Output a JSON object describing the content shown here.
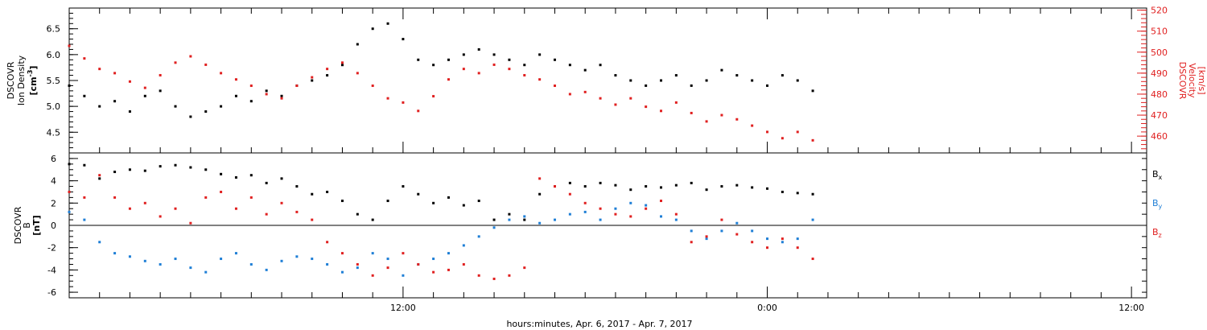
{
  "chart_data": [
    {
      "type": "scatter",
      "panel": "top",
      "ylabel_lines": [
        "DSCOVR",
        "Ion Density"
      ],
      "yunit_left": "cm",
      "yunit_left_sup": "-3",
      "ylabel_right_lines": [
        "DSCOVR",
        "Velocity"
      ],
      "yunit_right": "[km/s]",
      "y_ticks_left": [
        "4.5",
        "5.0",
        "5.5",
        "6.0",
        "6.5"
      ],
      "y_ticks_right": [
        "460",
        "470",
        "480",
        "490",
        "500",
        "510",
        "520"
      ],
      "ylim_left": [
        4.1,
        6.9
      ],
      "ylim_right": [
        452,
        521
      ],
      "series": [
        {
          "name": "",
          "color": "#000000",
          "axis": "left",
          "x": [
            0,
            0.5,
            1,
            1.5,
            2,
            2.5,
            3,
            3.5,
            4,
            4.5,
            5,
            5.5,
            6,
            6.5,
            7,
            7.5,
            8,
            8.5,
            9,
            9.5,
            10,
            10.5,
            11,
            11.5,
            12,
            12.5,
            13,
            13.5,
            14,
            14.5,
            15,
            15.5,
            16,
            16.5,
            17,
            17.5,
            18,
            18.5,
            19,
            19.5,
            20,
            20.5,
            21,
            21.5,
            22,
            22.5,
            23,
            23.5,
            24,
            24.5
          ],
          "y": [
            5.4,
            5.2,
            5.0,
            5.1,
            4.9,
            5.2,
            5.3,
            5.0,
            4.8,
            4.9,
            5.0,
            5.2,
            5.1,
            5.3,
            5.2,
            5.4,
            5.5,
            5.6,
            5.8,
            6.2,
            6.5,
            6.6,
            6.3,
            5.9,
            5.8,
            5.9,
            6.0,
            6.1,
            6.0,
            5.9,
            5.8,
            6.0,
            5.9,
            5.8,
            5.7,
            5.8,
            5.6,
            5.5,
            5.4,
            5.5,
            5.6,
            5.4,
            5.5,
            5.7,
            5.6,
            5.5,
            5.4,
            5.6,
            5.5,
            5.3
          ]
        },
        {
          "name": "",
          "color": "#e02020",
          "axis": "right",
          "x": [
            0,
            0.5,
            1,
            1.5,
            2,
            2.5,
            3,
            3.5,
            4,
            4.5,
            5,
            5.5,
            6,
            6.5,
            7,
            7.5,
            8,
            8.5,
            9,
            9.5,
            10,
            10.5,
            11,
            11.5,
            12,
            12.5,
            13,
            13.5,
            14,
            14.5,
            15,
            15.5,
            16,
            16.5,
            17,
            17.5,
            18,
            18.5,
            19,
            19.5,
            20,
            20.5,
            21,
            21.5,
            22,
            22.5,
            23,
            23.5,
            24,
            24.5
          ],
          "y": [
            503,
            497,
            492,
            490,
            486,
            483,
            489,
            495,
            498,
            494,
            490,
            487,
            484,
            480,
            478,
            484,
            488,
            492,
            495,
            490,
            484,
            478,
            476,
            472,
            479,
            487,
            492,
            490,
            494,
            492,
            489,
            487,
            484,
            480,
            481,
            478,
            475,
            478,
            474,
            472,
            476,
            471,
            467,
            470,
            468,
            465,
            462,
            459,
            462,
            458
          ]
        }
      ]
    },
    {
      "type": "scatter",
      "panel": "bottom",
      "ylabel_lines": [
        "DSCOVR",
        "B"
      ],
      "yunit_left": "[nT]",
      "y_ticks_left": [
        "-6",
        "-4",
        "-2",
        "0",
        "2",
        "4",
        "6"
      ],
      "ylim_left": [
        -6.5,
        6.5
      ],
      "x_ticks_major": [
        "12:00",
        "0:00",
        "12:00"
      ],
      "x_ticks_major_hours": [
        12,
        24,
        36
      ],
      "xlim_hours": [
        1,
        36.5
      ],
      "xlabel": "hours:minutes, Apr.  6, 2017 - Apr.  7, 2017",
      "legend": [
        {
          "label": "B",
          "sub": "x",
          "color": "#000000"
        },
        {
          "label": "B",
          "sub": "y",
          "color": "#1f7fd6"
        },
        {
          "label": "B",
          "sub": "z",
          "color": "#e02020"
        }
      ],
      "series": [
        {
          "name": "Bx",
          "color": "#000000",
          "x": [
            0,
            0.5,
            1,
            1.5,
            2,
            2.5,
            3,
            3.5,
            4,
            4.5,
            5,
            5.5,
            6,
            6.5,
            7,
            7.5,
            8,
            8.5,
            9,
            9.5,
            10,
            10.5,
            11,
            11.5,
            12,
            12.5,
            13,
            13.5,
            14,
            14.5,
            15,
            15.5,
            16,
            16.5,
            17,
            17.5,
            18,
            18.5,
            19,
            19.5,
            20,
            20.5,
            21,
            21.5,
            22,
            22.5,
            23,
            23.5,
            24,
            24.5
          ],
          "y": [
            5.5,
            5.4,
            4.2,
            4.8,
            5.0,
            4.9,
            5.3,
            5.4,
            5.2,
            5.0,
            4.6,
            4.3,
            4.5,
            3.8,
            4.2,
            3.5,
            2.8,
            3.0,
            2.2,
            1.0,
            0.5,
            2.2,
            3.5,
            2.8,
            2.0,
            2.5,
            1.8,
            2.2,
            0.5,
            1.0,
            0.5,
            2.8,
            3.5,
            3.8,
            3.5,
            3.8,
            3.6,
            3.2,
            3.5,
            3.4,
            3.6,
            3.8,
            3.2,
            3.5,
            3.6,
            3.4,
            3.3,
            3.0,
            2.9,
            2.8
          ]
        },
        {
          "name": "By",
          "color": "#1f7fd6",
          "x": [
            0,
            0.5,
            1,
            1.5,
            2,
            2.5,
            3,
            3.5,
            4,
            4.5,
            5,
            5.5,
            6,
            6.5,
            7,
            7.5,
            8,
            8.5,
            9,
            9.5,
            10,
            10.5,
            11,
            11.5,
            12,
            12.5,
            13,
            13.5,
            14,
            14.5,
            15,
            15.5,
            16,
            16.5,
            17,
            17.5,
            18,
            18.5,
            19,
            19.5,
            20,
            20.5,
            21,
            21.5,
            22,
            22.5,
            23,
            23.5,
            24,
            24.5
          ],
          "y": [
            1.2,
            0.5,
            -1.5,
            -2.5,
            -2.8,
            -3.2,
            -3.5,
            -3.0,
            -3.8,
            -4.2,
            -3.0,
            -2.5,
            -3.5,
            -4.0,
            -3.2,
            -2.8,
            -3.0,
            -3.5,
            -4.2,
            -3.8,
            -2.5,
            -3.0,
            -4.5,
            -3.5,
            -3.0,
            -2.5,
            -1.8,
            -1.0,
            -0.2,
            0.5,
            0.8,
            0.2,
            0.5,
            1.0,
            1.2,
            0.5,
            1.5,
            2.0,
            1.8,
            0.8,
            0.5,
            -0.5,
            -1.2,
            -0.5,
            0.2,
            -0.5,
            -1.2,
            -1.5,
            -1.2,
            0.5
          ]
        },
        {
          "name": "Bz",
          "color": "#e02020",
          "x": [
            0,
            0.5,
            1,
            1.5,
            2,
            2.5,
            3,
            3.5,
            4,
            4.5,
            5,
            5.5,
            6,
            6.5,
            7,
            7.5,
            8,
            8.5,
            9,
            9.5,
            10,
            10.5,
            11,
            11.5,
            12,
            12.5,
            13,
            13.5,
            14,
            14.5,
            15,
            15.5,
            16,
            16.5,
            17,
            17.5,
            18,
            18.5,
            19,
            19.5,
            20,
            20.5,
            21,
            21.5,
            22,
            22.5,
            23,
            23.5,
            24,
            24.5
          ],
          "y": [
            3.0,
            2.5,
            4.5,
            2.5,
            1.5,
            2.0,
            0.8,
            1.5,
            0.2,
            2.5,
            3.0,
            1.5,
            2.5,
            1.0,
            2.0,
            1.2,
            0.5,
            -1.5,
            -2.5,
            -3.5,
            -4.5,
            -3.8,
            -2.5,
            -3.5,
            -4.2,
            -4.0,
            -3.5,
            -4.5,
            -4.8,
            -4.5,
            -3.8,
            4.2,
            3.5,
            2.8,
            2.0,
            1.5,
            1.0,
            0.8,
            1.5,
            2.2,
            1.0,
            -1.5,
            -1.0,
            0.5,
            -0.8,
            -1.5,
            -2.0,
            -1.2,
            -2.0,
            -3.0
          ]
        }
      ]
    }
  ]
}
